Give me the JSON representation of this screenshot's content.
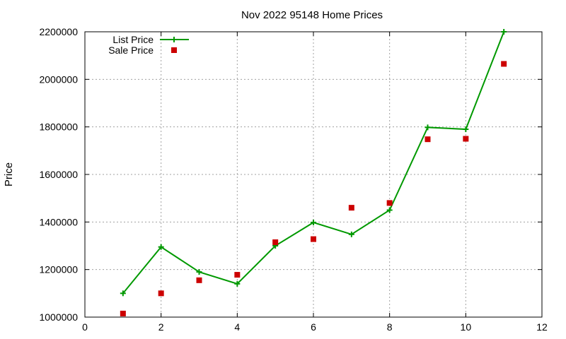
{
  "chart_data": {
    "type": "line",
    "title": "Nov 2022 95148 Home Prices",
    "xlabel": "",
    "ylabel": "Price",
    "xlim": [
      0,
      12
    ],
    "ylim": [
      1000000,
      2200000
    ],
    "xticks": [
      0,
      2,
      4,
      6,
      8,
      10,
      12
    ],
    "yticks": [
      1000000,
      1200000,
      1400000,
      1600000,
      1800000,
      2000000,
      2200000
    ],
    "grid": true,
    "legend_position": "top-left",
    "series": [
      {
        "name": "List Price",
        "style": "line+cross",
        "color": "#009900",
        "x": [
          1,
          2,
          3,
          4,
          5,
          6,
          7,
          8,
          9,
          10,
          11
        ],
        "y": [
          1100000,
          1295000,
          1190000,
          1140000,
          1300000,
          1398000,
          1348000,
          1450000,
          1798000,
          1790000,
          2200000
        ]
      },
      {
        "name": "Sale Price",
        "style": "square",
        "color": "#cc0000",
        "x": [
          1,
          2,
          3,
          4,
          5,
          6,
          7,
          8,
          9,
          10,
          11
        ],
        "y": [
          1015000,
          1100000,
          1155000,
          1178000,
          1315000,
          1328000,
          1460000,
          1480000,
          1748000,
          1750000,
          2065000
        ]
      }
    ]
  }
}
